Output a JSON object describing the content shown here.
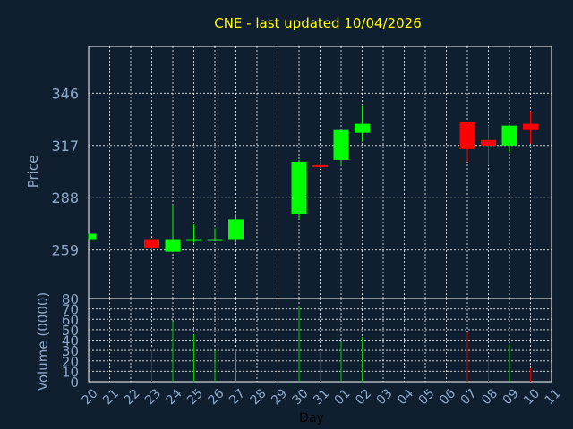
{
  "chart_data": {
    "type": "candlestick",
    "title": "CNE - last updated 10/04/2026",
    "xlabel": "Day",
    "price_panel": {
      "ylabel": "Price",
      "yticks": [
        259,
        288,
        317,
        346
      ],
      "ylim": [
        232,
        372
      ]
    },
    "volume_panel": {
      "ylabel": "Volume (0000)",
      "yticks": [
        0,
        10,
        20,
        30,
        40,
        50,
        60,
        70,
        80
      ],
      "ylim": [
        0,
        80
      ]
    },
    "x_labels": [
      "20",
      "21",
      "22",
      "23",
      "24",
      "25",
      "26",
      "27",
      "28",
      "29",
      "30",
      "31",
      "01",
      "02",
      "03",
      "04",
      "05",
      "06",
      "07",
      "08",
      "09",
      "10",
      "11"
    ],
    "grid": true,
    "colors": {
      "background": "#0f1f30",
      "up": "#00ff00",
      "down": "#ff0000",
      "title": "#ffff00",
      "axis_text": "#8fa8c8",
      "grid": "#ffffff"
    },
    "candles": [
      {
        "day": "20",
        "open": 265,
        "high": 268,
        "low": 265,
        "close": 268,
        "volume": 0
      },
      {
        "day": "23",
        "open": 265,
        "high": 265,
        "low": 259,
        "close": 260,
        "volume": 31
      },
      {
        "day": "24",
        "open": 258,
        "high": 284,
        "low": 258,
        "close": 265,
        "volume": 58
      },
      {
        "day": "25",
        "open": 264,
        "high": 273,
        "low": 263,
        "close": 265,
        "volume": 45
      },
      {
        "day": "26",
        "open": 264,
        "high": 271,
        "low": 264,
        "close": 265,
        "volume": 30
      },
      {
        "day": "27",
        "open": 265,
        "high": 279,
        "low": 263,
        "close": 276,
        "volume": 31
      },
      {
        "day": "30",
        "open": 279,
        "high": 309,
        "low": 276,
        "close": 308,
        "volume": 73
      },
      {
        "day": "31",
        "open": 306,
        "high": 309,
        "low": 304,
        "close": 305,
        "volume": 29
      },
      {
        "day": "01",
        "open": 309,
        "high": 326,
        "low": 306,
        "close": 326,
        "volume": 38
      },
      {
        "day": "02",
        "open": 324,
        "high": 339,
        "low": 319,
        "close": 329,
        "volume": 43
      },
      {
        "day": "07",
        "open": 330,
        "high": 330,
        "low": 308,
        "close": 315,
        "volume": 48
      },
      {
        "day": "08",
        "open": 320,
        "high": 328,
        "low": 306,
        "close": 317,
        "volume": 24
      },
      {
        "day": "09",
        "open": 317,
        "high": 328,
        "low": 313,
        "close": 328,
        "volume": 36
      },
      {
        "day": "10",
        "open": 329,
        "high": 336,
        "low": 318,
        "close": 326,
        "volume": 13
      }
    ]
  }
}
